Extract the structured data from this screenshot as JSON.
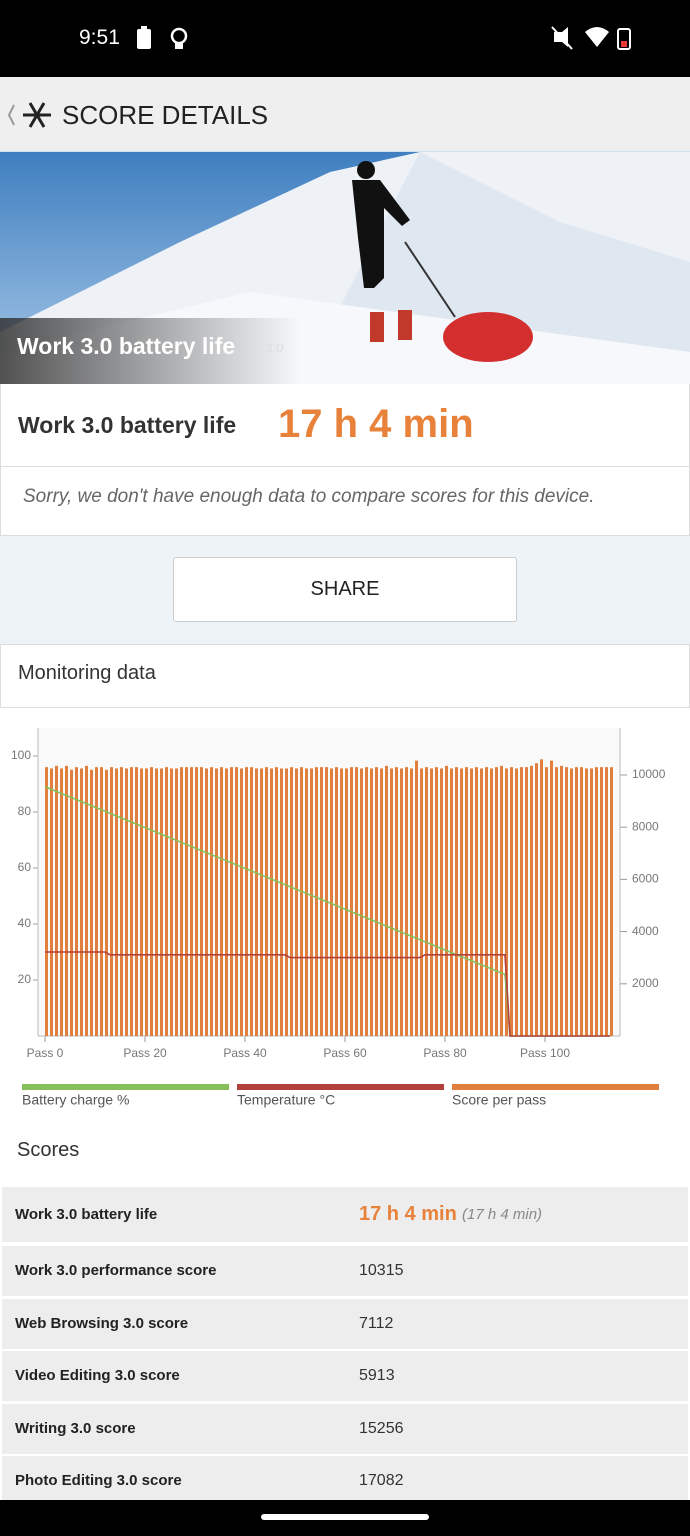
{
  "status_bar": {
    "time": "9:51"
  },
  "header": {
    "title": "SCORE DETAILS"
  },
  "hero": {
    "title": "Work 3.0 battery life",
    "version": "3.0"
  },
  "result": {
    "label": "Work 3.0 battery life",
    "value": "17 h 4 min"
  },
  "note": "Sorry, we don't have enough data to compare scores for this device.",
  "share_button": "SHARE",
  "monitoring_title": "Monitoring data",
  "chart_data": {
    "type": "combo",
    "xlim": [
      0,
      114
    ],
    "xticks": [
      {
        "value": 0,
        "label": "Pass 0"
      },
      {
        "value": 20,
        "label": "Pass 20"
      },
      {
        "value": 40,
        "label": "Pass 40"
      },
      {
        "value": 60,
        "label": "Pass 60"
      },
      {
        "value": 80,
        "label": "Pass 80"
      },
      {
        "value": 100,
        "label": "Pass 100"
      }
    ],
    "ylim": [
      0,
      110
    ],
    "yticks": [
      20,
      40,
      60,
      80,
      100
    ],
    "y2lim": [
      0,
      11800
    ],
    "y2ticks": [
      2000,
      4000,
      6000,
      8000,
      10000
    ],
    "series": [
      {
        "name": "Battery charge %",
        "type": "line",
        "color": "#86bf5a",
        "x": [
          0,
          92,
          93,
          113
        ],
        "values": [
          89,
          22,
          0,
          0
        ]
      },
      {
        "name": "Temperature °C",
        "type": "line",
        "color": "#b3403b",
        "x": [
          0,
          12,
          13,
          48,
          49,
          75,
          76,
          92,
          93,
          113
        ],
        "values": [
          30,
          30,
          29,
          29,
          28,
          28,
          29,
          29,
          0,
          0
        ]
      },
      {
        "name": "Score per pass",
        "type": "bar",
        "axis": "y2",
        "color": "#e07f3e",
        "x": [
          0,
          1,
          2,
          3,
          4,
          5,
          6,
          7,
          8,
          9,
          10,
          11,
          12,
          13,
          14,
          15,
          16,
          17,
          18,
          19,
          20,
          21,
          22,
          23,
          24,
          25,
          26,
          27,
          28,
          29,
          30,
          31,
          32,
          33,
          34,
          35,
          36,
          37,
          38,
          39,
          40,
          41,
          42,
          43,
          44,
          45,
          46,
          47,
          48,
          49,
          50,
          51,
          52,
          53,
          54,
          55,
          56,
          57,
          58,
          59,
          60,
          61,
          62,
          63,
          64,
          65,
          66,
          67,
          68,
          69,
          70,
          71,
          72,
          73,
          74,
          75,
          76,
          77,
          78,
          79,
          80,
          81,
          82,
          83,
          84,
          85,
          86,
          87,
          88,
          89,
          90,
          91,
          92,
          93,
          94,
          95,
          96,
          97,
          98,
          99,
          100,
          101,
          102,
          103,
          104,
          105,
          106,
          107,
          108,
          109,
          110,
          111,
          112,
          113
        ],
        "values": [
          10300,
          10250,
          10350,
          10250,
          10350,
          10200,
          10300,
          10250,
          10350,
          10200,
          10300,
          10300,
          10200,
          10300,
          10250,
          10300,
          10250,
          10300,
          10300,
          10250,
          10250,
          10300,
          10250,
          10250,
          10300,
          10250,
          10250,
          10300,
          10300,
          10300,
          10300,
          10300,
          10250,
          10300,
          10250,
          10300,
          10250,
          10300,
          10300,
          10250,
          10300,
          10300,
          10250,
          10250,
          10300,
          10250,
          10300,
          10250,
          10250,
          10300,
          10250,
          10300,
          10250,
          10250,
          10300,
          10300,
          10300,
          10250,
          10300,
          10250,
          10250,
          10300,
          10300,
          10250,
          10300,
          10250,
          10300,
          10250,
          10350,
          10250,
          10300,
          10250,
          10300,
          10250,
          10550,
          10250,
          10300,
          10250,
          10300,
          10250,
          10350,
          10250,
          10300,
          10250,
          10300,
          10250,
          10300,
          10250,
          10300,
          10250,
          10300,
          10350,
          10250,
          10300,
          10250,
          10300,
          10300,
          10350,
          10450,
          10600,
          10300,
          10550,
          10300,
          10350,
          10300,
          10250,
          10300,
          10300,
          10250,
          10250,
          10300,
          10300,
          10300,
          10300
        ]
      }
    ]
  },
  "scores": {
    "title": "Scores",
    "rows": [
      {
        "label": "Work 3.0 battery life",
        "value": "17 h 4 min",
        "detail": "(17 h 4 min)"
      },
      {
        "label": "Work 3.0 performance score",
        "value": 10315
      },
      {
        "label": "Web Browsing 3.0 score",
        "value": 7112
      },
      {
        "label": "Video Editing 3.0 score",
        "value": 5913
      },
      {
        "label": "Writing 3.0 score",
        "value": 15256
      },
      {
        "label": "Photo Editing 3.0 score",
        "value": 17082
      }
    ]
  }
}
